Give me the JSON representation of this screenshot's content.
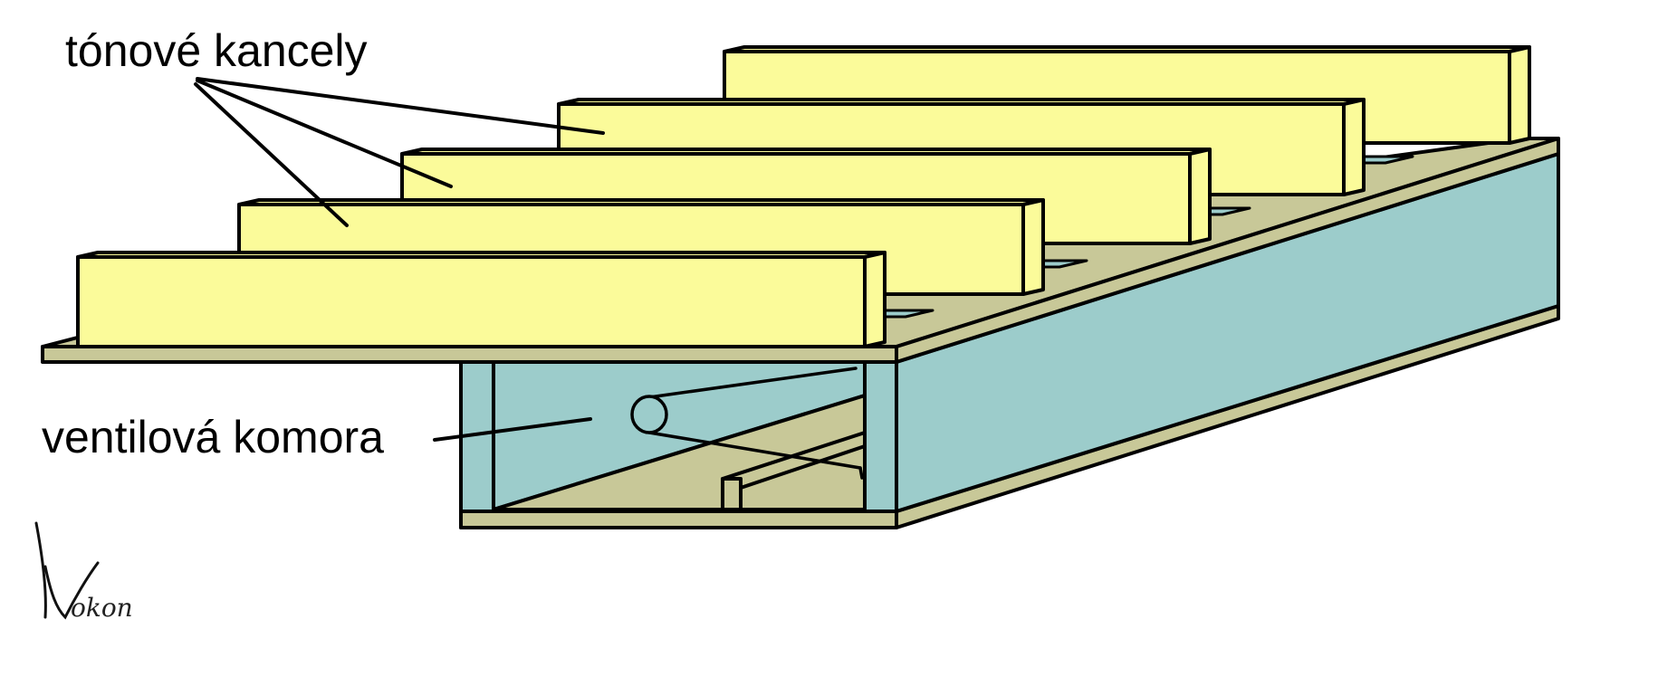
{
  "labels": {
    "tone_channels": "tónové kancely",
    "valve_chamber": "ventilová komora"
  },
  "signature": "Kokon",
  "colors": {
    "channel_fill": "#fbfb9a",
    "board_fill": "#c8c898",
    "chamber_fill": "#9ccccb",
    "outline": "#000000"
  }
}
